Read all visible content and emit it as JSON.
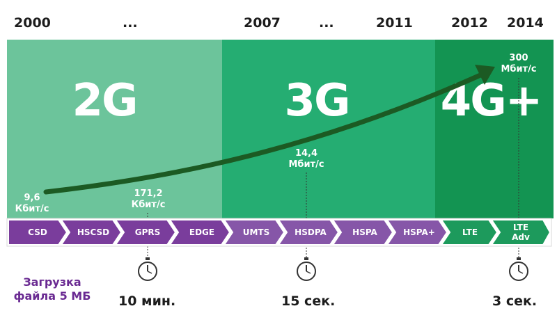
{
  "years": [
    "2000",
    "...",
    "2007",
    "...",
    "2011",
    "2012",
    "2014"
  ],
  "generations": {
    "g2": {
      "label": "2G",
      "color": "#6cc49b"
    },
    "g3": {
      "label": "3G",
      "color": "#25ad72"
    },
    "g4": {
      "label": "4G+",
      "color": "#139452"
    }
  },
  "speeds": {
    "s1": {
      "value": "9,6",
      "unit": "Кбит/с"
    },
    "s2": {
      "value": "171,2",
      "unit": "Кбит/с"
    },
    "s3": {
      "value": "14,4",
      "unit": "Мбит/с"
    },
    "s4": {
      "value": "300",
      "unit": "Мбит/с"
    }
  },
  "technologies": [
    "CSD",
    "HSCSD",
    "GPRS",
    "EDGE",
    "UMTS",
    "HSDPA",
    "HSPA",
    "HSPA+",
    "LTE",
    "LTE Adv"
  ],
  "tech_colors": {
    "2g": "#7a3d9c",
    "3g": "#8656a8",
    "4g": "#1d9a5c"
  },
  "download": {
    "label_line1": "Загрузка",
    "label_line2": "файла 5 МБ",
    "times": [
      "10 мин.",
      "15 сек.",
      "3 сек."
    ]
  },
  "icons": [
    "trend-arrow-icon",
    "stopwatch-icon"
  ]
}
